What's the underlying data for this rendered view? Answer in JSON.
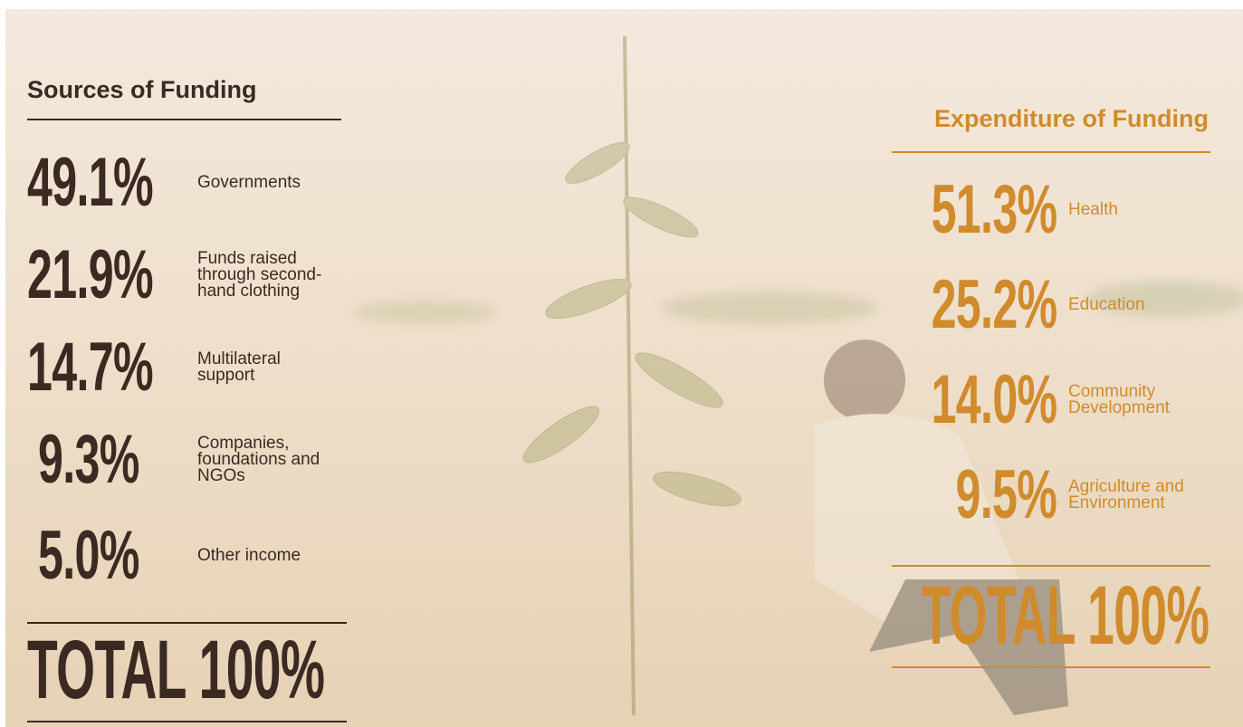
{
  "sources": {
    "title": "Sources of Funding",
    "items": [
      {
        "value": "49.1%",
        "label": "Governments"
      },
      {
        "value": "21.9%",
        "label": "Funds raised through second-hand clothing"
      },
      {
        "value": "14.7%",
        "label": "Multilateral support"
      },
      {
        "value": "9.3%",
        "label": "Companies, foundations and NGOs"
      },
      {
        "value": "5.0%",
        "label": "Other income"
      }
    ],
    "total": "TOTAL 100%"
  },
  "expenditure": {
    "title": "Expenditure of Funding",
    "items": [
      {
        "value": "51.3%",
        "label": "Health"
      },
      {
        "value": "25.2%",
        "label": "Education"
      },
      {
        "value": "14.0%",
        "label": "Community Development"
      },
      {
        "value": "9.5%",
        "label": "Agriculture and Environment"
      }
    ],
    "total": "TOTAL 100%"
  }
}
